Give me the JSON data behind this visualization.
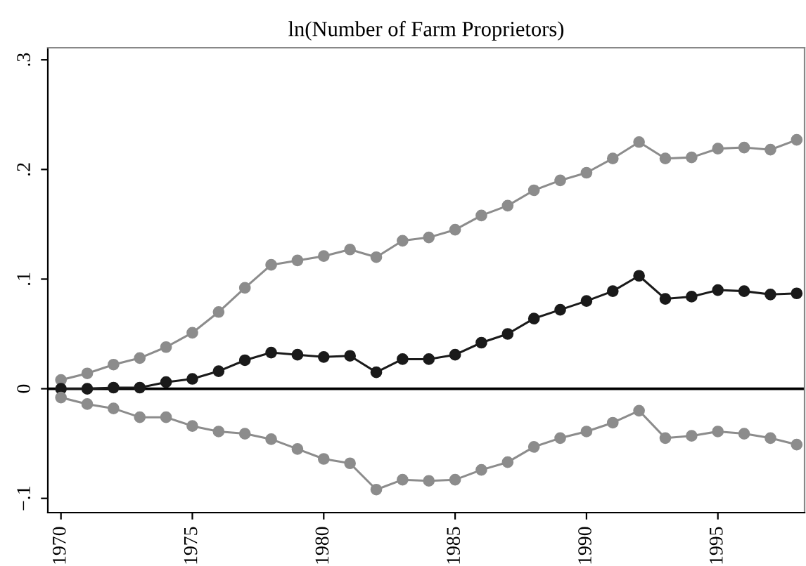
{
  "chart_data": {
    "type": "line",
    "title": "ln(Number of Farm Proprietors)",
    "x": [
      1970,
      1971,
      1972,
      1973,
      1974,
      1975,
      1976,
      1977,
      1978,
      1979,
      1980,
      1981,
      1982,
      1983,
      1984,
      1985,
      1986,
      1987,
      1988,
      1989,
      1990,
      1991,
      1992,
      1993,
      1994,
      1995,
      1996,
      1997,
      1998
    ],
    "series": [
      {
        "color": "#8c8c8c",
        "values": [
          0.008,
          0.014,
          0.022,
          0.028,
          0.038,
          0.051,
          0.07,
          0.092,
          0.113,
          0.117,
          0.121,
          0.127,
          0.12,
          0.135,
          0.138,
          0.145,
          0.158,
          0.167,
          0.181,
          0.19,
          0.197,
          0.21,
          0.225,
          0.21,
          0.211,
          0.219,
          0.22,
          0.218,
          0.227
        ]
      },
      {
        "color": "#1a1a1a",
        "values": [
          0.0,
          0.0,
          0.001,
          0.001,
          0.006,
          0.009,
          0.016,
          0.026,
          0.033,
          0.031,
          0.029,
          0.03,
          0.015,
          0.027,
          0.027,
          0.031,
          0.042,
          0.05,
          0.064,
          0.072,
          0.08,
          0.089,
          0.103,
          0.082,
          0.084,
          0.09,
          0.089,
          0.086,
          0.087
        ]
      },
      {
        "color": "#8c8c8c",
        "values": [
          -0.008,
          -0.014,
          -0.018,
          -0.026,
          -0.026,
          -0.034,
          -0.039,
          -0.041,
          -0.046,
          -0.055,
          -0.064,
          -0.068,
          -0.092,
          -0.083,
          -0.084,
          -0.083,
          -0.074,
          -0.067,
          -0.053,
          -0.045,
          -0.039,
          -0.031,
          -0.02,
          -0.045,
          -0.043,
          -0.039,
          -0.041,
          -0.045,
          -0.051
        ]
      }
    ],
    "xlim": [
      1969.5,
      1998.3
    ],
    "ylim": [
      -0.113,
      0.311
    ],
    "xticks": [
      1970,
      1975,
      1980,
      1985,
      1990,
      1995
    ],
    "yticks": [
      {
        "value": -0.1,
        "label": "−.1"
      },
      {
        "value": 0,
        "label": "0"
      },
      {
        "value": 0.1,
        "label": ".1"
      },
      {
        "value": 0.2,
        "label": ".2"
      },
      {
        "value": 0.3,
        "label": ".3"
      }
    ],
    "ref_lines": [
      {
        "axis": "y",
        "value": 0,
        "color": "#000000"
      }
    ],
    "grid": false,
    "legend": false,
    "marker": "circle",
    "line_style": "solid"
  }
}
